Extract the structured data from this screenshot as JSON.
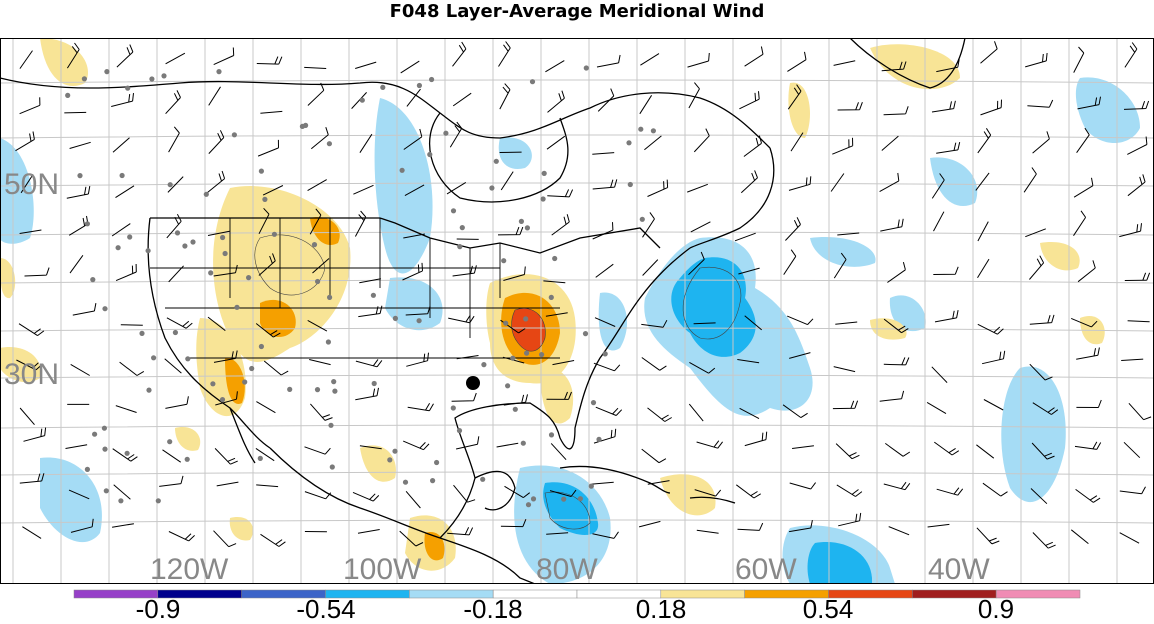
{
  "title": "F048 Layer-Average Meridional Wind",
  "lat_labels": [
    "50N",
    "30N"
  ],
  "lon_labels": [
    "120W",
    "100W",
    "80W",
    "60W",
    "40W"
  ],
  "colorbar": {
    "colors": [
      "#9640c8",
      "#00008c",
      "#3c64c8",
      "#1eb4f0",
      "#a5dcf5",
      "#ffffff",
      "#ffffff",
      "#f8e496",
      "#f5a000",
      "#e64614",
      "#a01e1e",
      "#f08cb4"
    ],
    "labels": [
      "-0.9",
      "-0.54",
      "-0.18",
      "0.18",
      "0.54",
      "0.9"
    ]
  },
  "palette": {
    "neg_light": "#a5dcf5",
    "neg_mid": "#1eb4f0",
    "pos_light": "#f8e496",
    "pos_mid": "#f5a000",
    "pos_strong": "#e64614",
    "station": "#7a7a7a",
    "grid": "#c8c8c8"
  }
}
